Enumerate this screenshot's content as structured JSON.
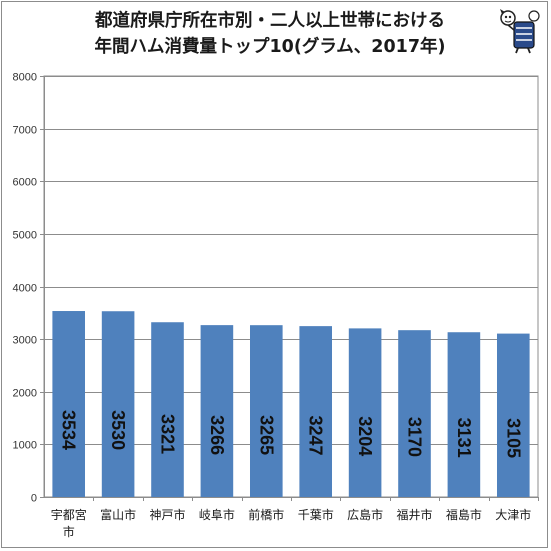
{
  "chart_data": {
    "type": "bar",
    "title_lines": [
      "都道府県庁所在市別・二人以上世帯における",
      "年間ハム消費量トップ10(グラム、2017年)"
    ],
    "categories": [
      "宇都宮市",
      "富山市",
      "神戸市",
      "岐阜市",
      "前橋市",
      "千葉市",
      "広島市",
      "福井市",
      "福島市",
      "大津市"
    ],
    "values": [
      3534,
      3530,
      3321,
      3266,
      3265,
      3247,
      3204,
      3170,
      3131,
      3105
    ],
    "ylim": [
      0,
      8000
    ],
    "yticks": [
      0,
      1000,
      2000,
      3000,
      4000,
      5000,
      6000,
      7000,
      8000
    ],
    "grid": true,
    "bar_color": "#4f81bd",
    "data_labels": "inside-rotated"
  }
}
